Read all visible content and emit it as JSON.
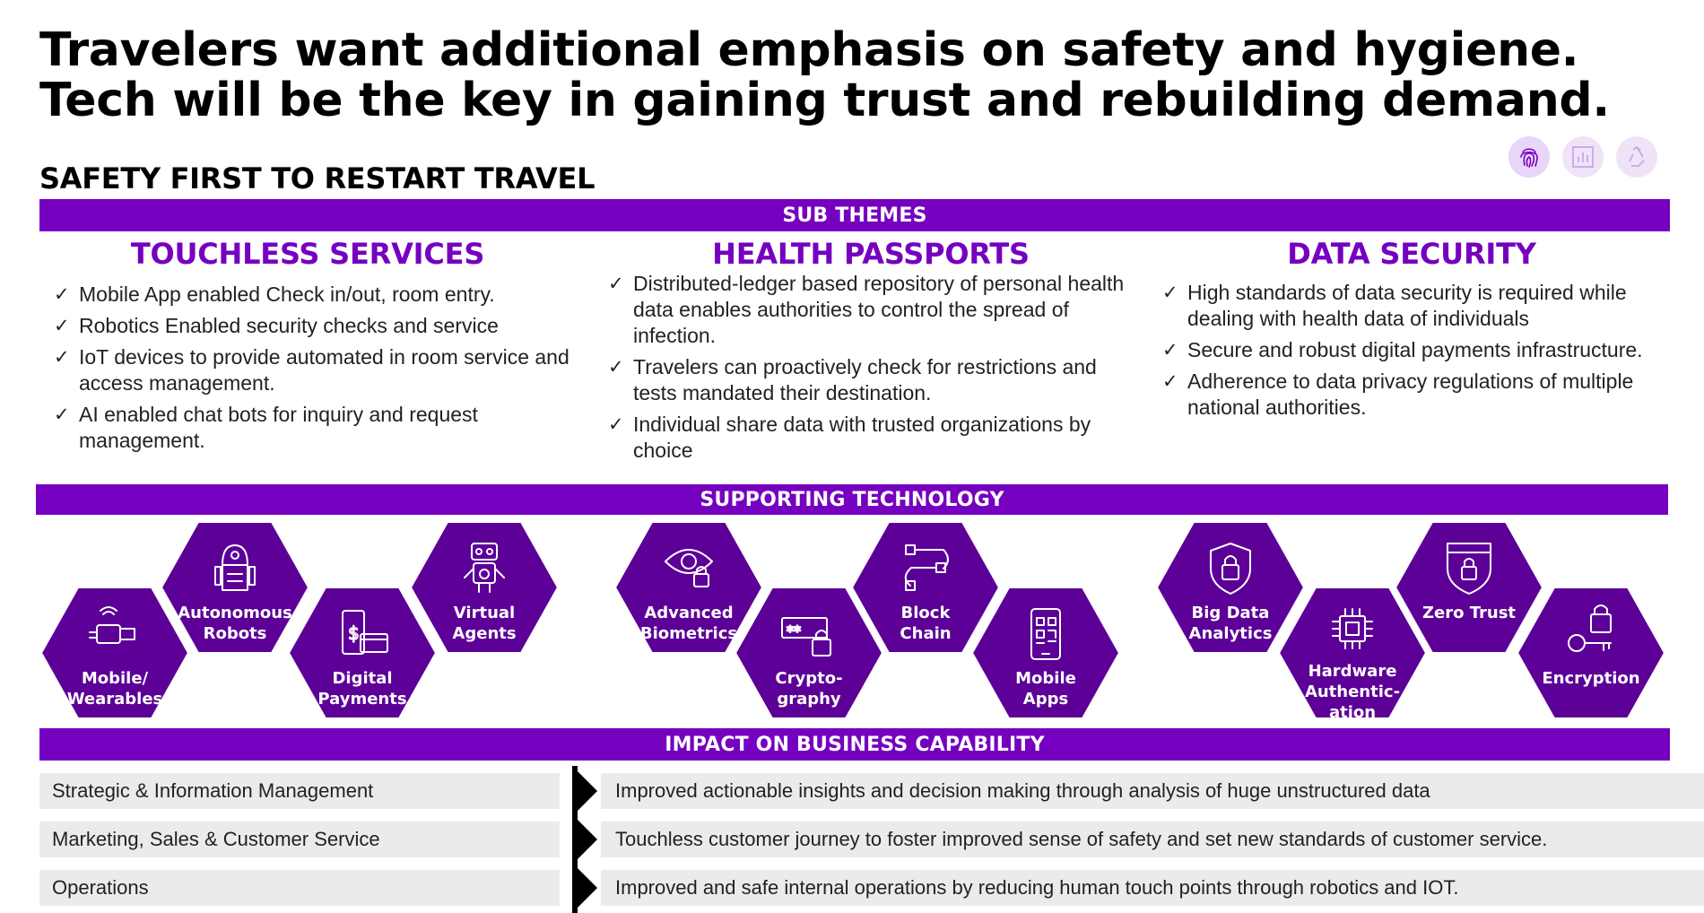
{
  "headline": {
    "line1": "Travelers want additional emphasis on safety and hygiene.",
    "line2": "Tech will be the key in gaining trust and rebuilding demand."
  },
  "subhead": "SAFETY FIRST TO RESTART TRAVEL",
  "top_icons": [
    {
      "name": "fingerprint-icon",
      "color": "#e9d5f7",
      "stroke": "#7500c0"
    },
    {
      "name": "bar-chart-icon",
      "color": "#efe3f8",
      "stroke": "#c9a6e8"
    },
    {
      "name": "recycle-icon",
      "color": "#efe3f8",
      "stroke": "#c9a6e8"
    }
  ],
  "sub_themes": {
    "bar_label": "SUB THEMES",
    "themes": [
      {
        "title": "TOUCHLESS SERVICES",
        "items": [
          "Mobile App enabled Check in/out, room entry.",
          "Robotics Enabled security checks and service",
          "IoT devices to provide automated in room service and access management.",
          "AI enabled chat bots for inquiry and request management."
        ]
      },
      {
        "title": "HEALTH PASSPORTS",
        "items": [
          "Distributed-ledger based repository of personal health data enables authorities to control the spread of infection.",
          "Travelers can proactively check for restrictions and tests mandated their destination.",
          "Individual share data with trusted organizations by choice"
        ]
      },
      {
        "title": "DATA SECURITY",
        "items": [
          "High standards of data security is required while dealing with health data of individuals",
          "Secure  and robust digital payments infrastructure.",
          "Adherence to data privacy regulations of multiple national authorities."
        ]
      }
    ]
  },
  "supporting_technology": {
    "bar_label": "SUPPORTING TECHNOLOGY",
    "hex_color": "#5c0097",
    "items": [
      {
        "label": "Mobile/\nWearables",
        "icon": "smartwatch-icon"
      },
      {
        "label": "Autonomous\nRobots",
        "icon": "robot-icon"
      },
      {
        "label": "Digital\nPayments",
        "icon": "phone-payment-icon"
      },
      {
        "label": "Virtual\nAgents",
        "icon": "bot-icon"
      },
      {
        "label": "Advanced\nBiometrics",
        "icon": "eye-lock-icon"
      },
      {
        "label": "Crypto-\ngraphy",
        "icon": "password-lock-icon"
      },
      {
        "label": "Block\nChain",
        "icon": "blockchain-icon"
      },
      {
        "label": "Mobile\nApps",
        "icon": "mobile-qr-icon"
      },
      {
        "label": "Big Data\nAnalytics",
        "icon": "shield-lock-icon"
      },
      {
        "label": "Hardware\nAuthentic-\nation",
        "icon": "chip-icon"
      },
      {
        "label": "Zero Trust",
        "icon": "zero-trust-shield-icon"
      },
      {
        "label": "Encryption",
        "icon": "key-lock-icon"
      }
    ]
  },
  "impact": {
    "bar_label": "IMPACT ON BUSINESS CAPABILITY",
    "rows": [
      {
        "capability": "Strategic & Information Management",
        "impact": "Improved actionable insights and decision making through analysis of huge unstructured data"
      },
      {
        "capability": "Marketing, Sales & Customer Service",
        "impact": "Touchless customer journey to foster improved sense of safety and set new standards of customer service."
      },
      {
        "capability": "Operations",
        "impact": "Improved and safe  internal operations by reducing human touch points through robotics and IOT."
      }
    ]
  }
}
